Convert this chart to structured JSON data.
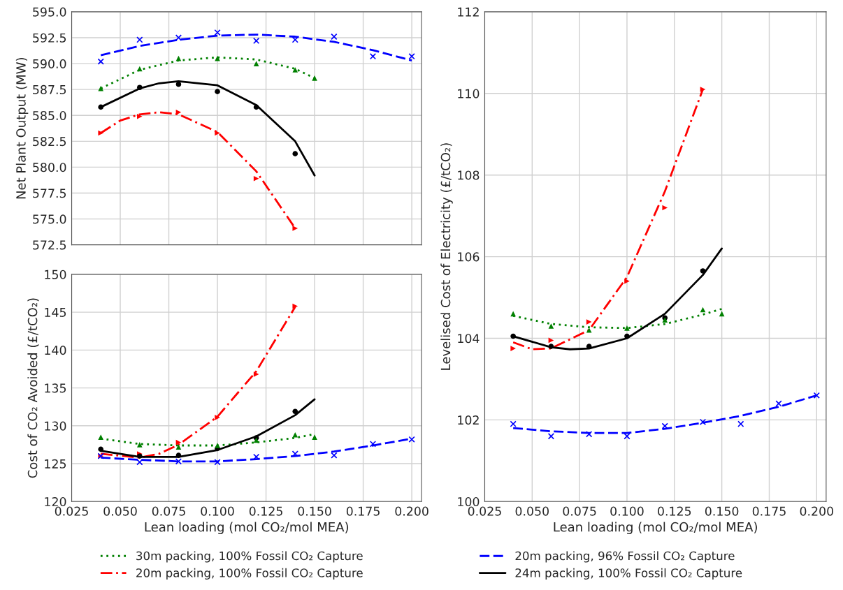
{
  "chart_data": [
    {
      "type": "scatter",
      "ylabel": "Net Plant Output (MW)",
      "xlim": [
        0.025,
        0.205
      ],
      "xticks": [
        0.025,
        {
          "value": 0.05,
          "label": "0.050"
        },
        0.075,
        {
          "value": 0.1,
          "label": "0.100"
        },
        0.125,
        {
          "value": 0.15,
          "label": "0.150"
        },
        0.175,
        {
          "value": 0.2,
          "label": "0.200"
        }
      ],
      "ylim": [
        572.5,
        595.0
      ],
      "yticks": [
        572.5,
        {
          "value": 575,
          "label": "575.0"
        },
        577.5,
        {
          "value": 580,
          "label": "580.0"
        },
        582.5,
        {
          "value": 585,
          "label": "585.0"
        },
        587.5,
        {
          "value": 590,
          "label": "590.0"
        },
        592.5,
        {
          "value": 595,
          "label": "595.0"
        }
      ],
      "grid": true,
      "tick_labels": "y",
      "legend": "bottom",
      "series": [
        {
          "type": "scatter",
          "marker": "cross",
          "color": "#0000ff",
          "x": [
            0.04,
            0.06,
            0.08,
            0.1,
            0.12,
            0.14,
            0.16,
            0.18,
            0.2
          ],
          "values": [
            590.2,
            592.3,
            592.5,
            593.0,
            592.2,
            592.3,
            592.6,
            590.7,
            590.7
          ]
        },
        {
          "type": "scatter",
          "marker": "triangle",
          "color": "#008000",
          "x": [
            0.04,
            0.06,
            0.08,
            0.1,
            0.12,
            0.14,
            0.15
          ],
          "values": [
            587.6,
            589.5,
            590.5,
            590.5,
            590.0,
            589.4,
            588.6
          ]
        },
        {
          "type": "scatter",
          "marker": "circle",
          "color": "#000000",
          "x": [
            0.04,
            0.06,
            0.08,
            0.1,
            0.12,
            0.14
          ],
          "values": [
            585.8,
            587.7,
            588.0,
            587.3,
            585.8,
            581.3
          ]
        },
        {
          "type": "scatter",
          "marker": "triangle-right",
          "color": "#ff0000",
          "x": [
            0.04,
            0.06,
            0.08,
            0.1,
            0.12,
            0.14
          ],
          "values": [
            583.3,
            584.9,
            585.3,
            583.3,
            578.9,
            574.1
          ]
        },
        {
          "type": "line",
          "name": "30m packing, 100% Fossil CO₂ Capture",
          "line_style": "dotted",
          "color": "#008000",
          "x": [
            0.04,
            0.06,
            0.08,
            0.1,
            0.12,
            0.14,
            0.15
          ],
          "values": [
            587.6,
            589.4,
            590.3,
            590.6,
            590.4,
            589.5,
            588.6
          ]
        },
        {
          "type": "line",
          "name": "20m packing, 100% Fossil CO₂ Capture",
          "line_style": "dashdot",
          "color": "#ff0000",
          "x": [
            0.04,
            0.05,
            0.06,
            0.07,
            0.08,
            0.1,
            0.12,
            0.14
          ],
          "values": [
            583.3,
            584.5,
            585.1,
            585.3,
            585.1,
            583.4,
            579.6,
            574.1
          ]
        },
        {
          "type": "line",
          "name": "20m packing, 96% Fossil CO₂ Capture",
          "line_style": "dashed",
          "color": "#0000ff",
          "x": [
            0.04,
            0.06,
            0.08,
            0.1,
            0.12,
            0.14,
            0.16,
            0.18,
            0.2
          ],
          "values": [
            590.8,
            591.7,
            592.3,
            592.7,
            592.8,
            592.6,
            592.1,
            591.3,
            590.3
          ]
        },
        {
          "type": "line",
          "name": "24m packing, 100% Fossil CO₂ Capture",
          "line_style": "solid",
          "color": "#000000",
          "x": [
            0.04,
            0.06,
            0.07,
            0.08,
            0.1,
            0.12,
            0.14,
            0.15
          ],
          "values": [
            585.8,
            587.6,
            588.1,
            588.3,
            587.9,
            586.0,
            582.5,
            579.2
          ]
        }
      ]
    },
    {
      "type": "scatter",
      "xlabel": "Lean loading (mol CO₂/mol MEA)",
      "ylabel": "Cost of CO₂ Avoided (£/tCO₂)",
      "xlim": [
        0.025,
        0.205
      ],
      "xticks": [
        0.025,
        {
          "value": 0.05,
          "label": "0.050"
        },
        0.075,
        {
          "value": 0.1,
          "label": "0.100"
        },
        0.125,
        {
          "value": 0.15,
          "label": "0.150"
        },
        0.175,
        {
          "value": 0.2,
          "label": "0.200"
        }
      ],
      "ylim": [
        120,
        150
      ],
      "yticks": [
        120,
        125,
        130,
        135,
        140,
        145,
        150
      ],
      "grid": true,
      "legend": "bottom",
      "series": [
        {
          "type": "scatter",
          "marker": "cross",
          "color": "#0000ff",
          "x": [
            0.04,
            0.06,
            0.08,
            0.1,
            0.12,
            0.14,
            0.16,
            0.18,
            0.2
          ],
          "values": [
            126.0,
            125.2,
            125.3,
            125.2,
            125.9,
            126.3,
            126.1,
            127.6,
            128.2
          ]
        },
        {
          "type": "scatter",
          "marker": "triangle",
          "color": "#008000",
          "x": [
            0.04,
            0.06,
            0.08,
            0.1,
            0.12,
            0.14,
            0.15
          ],
          "values": [
            128.5,
            127.5,
            127.2,
            127.4,
            128.1,
            128.8,
            128.5
          ]
        },
        {
          "type": "scatter",
          "marker": "circle",
          "color": "#000000",
          "x": [
            0.04,
            0.06,
            0.08,
            0.1,
            0.12,
            0.14
          ],
          "values": [
            126.9,
            126.0,
            126.1,
            127.0,
            128.4,
            131.9
          ]
        },
        {
          "type": "scatter",
          "marker": "triangle-right",
          "color": "#ff0000",
          "x": [
            0.04,
            0.06,
            0.08,
            0.1,
            0.12,
            0.14
          ],
          "values": [
            126.0,
            126.3,
            127.8,
            131.1,
            136.8,
            145.8
          ]
        },
        {
          "type": "line",
          "name": "30m packing, 100% Fossil CO₂ Capture",
          "line_style": "dotted",
          "color": "#008000",
          "x": [
            0.04,
            0.06,
            0.08,
            0.1,
            0.12,
            0.14,
            0.15
          ],
          "values": [
            128.3,
            127.6,
            127.4,
            127.4,
            127.8,
            128.4,
            128.9
          ]
        },
        {
          "type": "line",
          "name": "20m packing, 100% Fossil CO₂ Capture",
          "line_style": "dashdot",
          "color": "#ff0000",
          "x": [
            0.04,
            0.06,
            0.07,
            0.08,
            0.1,
            0.12,
            0.14
          ],
          "values": [
            126.3,
            125.8,
            126.3,
            127.5,
            131.2,
            137.2,
            145.7
          ]
        },
        {
          "type": "line",
          "name": "20m packing, 96% Fossil CO₂ Capture",
          "line_style": "dashed",
          "color": "#0000ff",
          "x": [
            0.04,
            0.06,
            0.08,
            0.1,
            0.12,
            0.14,
            0.16,
            0.18,
            0.2
          ],
          "values": [
            125.8,
            125.5,
            125.3,
            125.3,
            125.6,
            126.0,
            126.6,
            127.4,
            128.3
          ]
        },
        {
          "type": "line",
          "name": "24m packing, 100% Fossil CO₂ Capture",
          "line_style": "solid",
          "color": "#000000",
          "x": [
            0.04,
            0.06,
            0.08,
            0.1,
            0.12,
            0.14,
            0.15
          ],
          "values": [
            126.7,
            125.9,
            125.9,
            126.8,
            128.6,
            131.4,
            133.5
          ]
        }
      ]
    },
    {
      "type": "scatter",
      "xlabel": "Lean loading (mol CO₂/mol MEA)",
      "ylabel": "Levelised Cost of Electricity (£/tCO₂)",
      "xlim": [
        0.025,
        0.205
      ],
      "xticks": [
        0.025,
        {
          "value": 0.05,
          "label": "0.050"
        },
        0.075,
        {
          "value": 0.1,
          "label": "0.100"
        },
        0.125,
        {
          "value": 0.15,
          "label": "0.150"
        },
        0.175,
        {
          "value": 0.2,
          "label": "0.200"
        }
      ],
      "ylim": [
        100,
        112
      ],
      "yticks": [
        100,
        102,
        104,
        106,
        108,
        110,
        112
      ],
      "grid": true,
      "legend": "bottom",
      "series": [
        {
          "type": "scatter",
          "marker": "cross",
          "color": "#0000ff",
          "x": [
            0.04,
            0.06,
            0.08,
            0.1,
            0.12,
            0.14,
            0.16,
            0.18,
            0.2
          ],
          "values": [
            101.9,
            101.6,
            101.65,
            101.6,
            101.85,
            101.95,
            101.9,
            102.4,
            102.6
          ]
        },
        {
          "type": "scatter",
          "marker": "triangle",
          "color": "#008000",
          "x": [
            0.04,
            0.06,
            0.08,
            0.1,
            0.12,
            0.14,
            0.15
          ],
          "values": [
            104.6,
            104.3,
            104.2,
            104.25,
            104.45,
            104.7,
            104.6
          ]
        },
        {
          "type": "scatter",
          "marker": "circle",
          "color": "#000000",
          "x": [
            0.04,
            0.06,
            0.08,
            0.1,
            0.12,
            0.14
          ],
          "values": [
            104.05,
            103.8,
            103.8,
            104.05,
            104.5,
            105.65
          ]
        },
        {
          "type": "scatter",
          "marker": "triangle-right",
          "color": "#ff0000",
          "x": [
            0.04,
            0.06,
            0.08,
            0.1,
            0.12,
            0.14
          ],
          "values": [
            103.75,
            103.95,
            104.4,
            105.4,
            107.2,
            110.1
          ]
        },
        {
          "type": "line",
          "name": "30m packing, 100% Fossil CO₂ Capture",
          "line_style": "dotted",
          "color": "#008000",
          "x": [
            0.04,
            0.06,
            0.08,
            0.1,
            0.12,
            0.14,
            0.15
          ],
          "values": [
            104.55,
            104.35,
            104.27,
            104.25,
            104.35,
            104.58,
            104.72
          ]
        },
        {
          "type": "line",
          "name": "20m packing, 100% Fossil CO₂ Capture",
          "line_style": "dashdot",
          "color": "#ff0000",
          "x": [
            0.04,
            0.05,
            0.06,
            0.08,
            0.1,
            0.12,
            0.14
          ],
          "values": [
            103.9,
            103.73,
            103.75,
            104.2,
            105.5,
            107.6,
            110.1
          ]
        },
        {
          "type": "line",
          "name": "20m packing, 96% Fossil CO₂ Capture",
          "line_style": "dashed",
          "color": "#0000ff",
          "x": [
            0.04,
            0.06,
            0.08,
            0.1,
            0.12,
            0.14,
            0.16,
            0.18,
            0.2
          ],
          "values": [
            101.8,
            101.72,
            101.68,
            101.68,
            101.78,
            101.93,
            102.1,
            102.32,
            102.6
          ]
        },
        {
          "type": "line",
          "name": "24m packing, 100% Fossil CO₂ Capture",
          "line_style": "solid",
          "color": "#000000",
          "x": [
            0.04,
            0.06,
            0.07,
            0.08,
            0.1,
            0.12,
            0.14,
            0.15
          ],
          "values": [
            104.05,
            103.78,
            103.73,
            103.75,
            104.0,
            104.6,
            105.55,
            106.2
          ]
        }
      ]
    }
  ]
}
